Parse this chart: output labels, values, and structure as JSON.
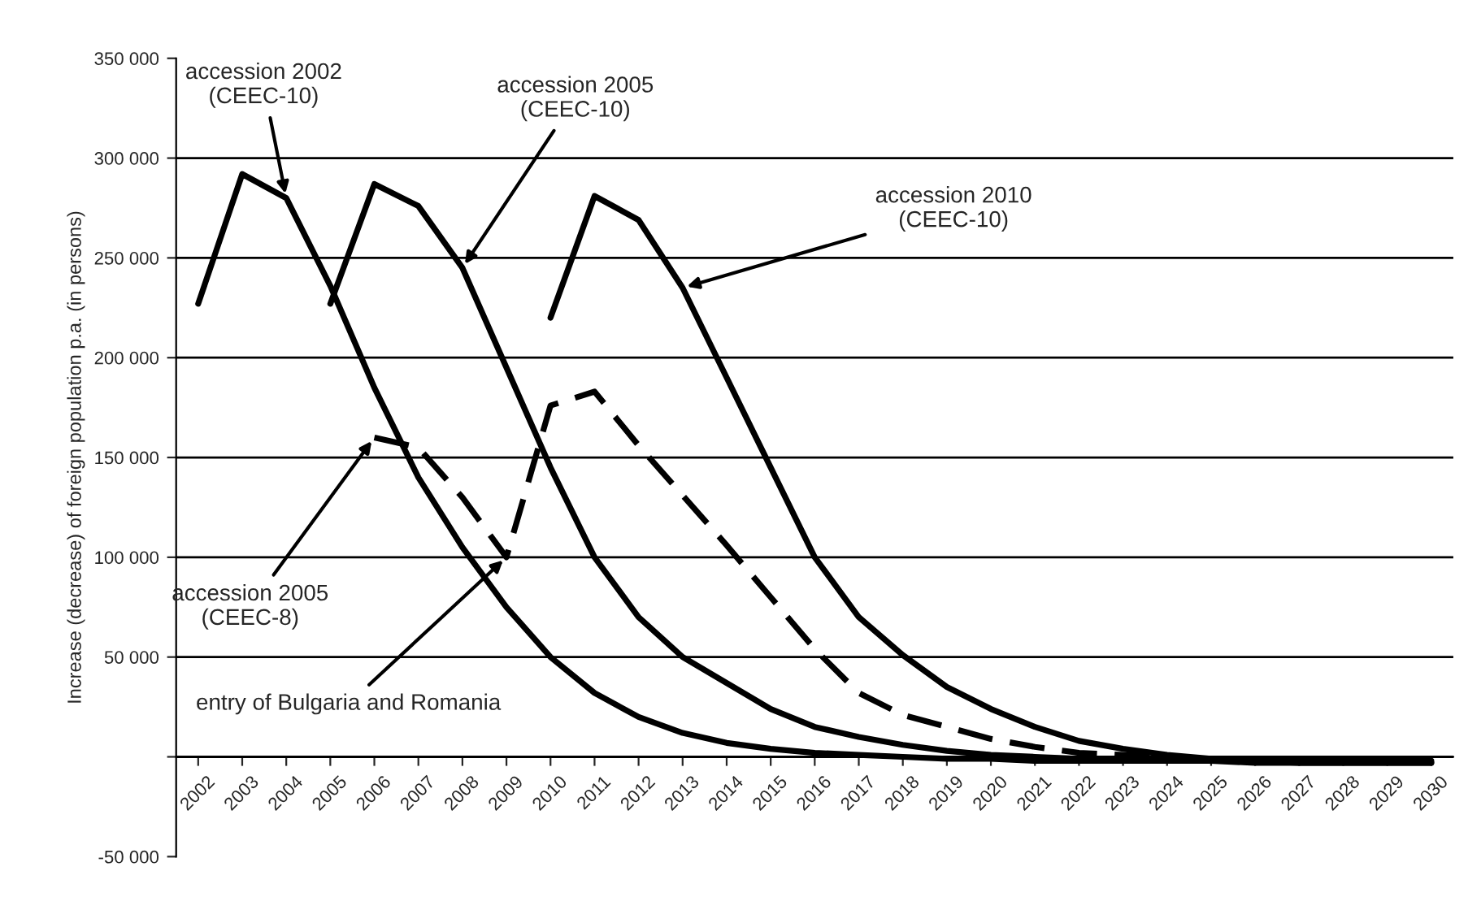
{
  "chart_data": {
    "type": "line",
    "ylabel": "Increase (decrease) of foreign population p.a. (in persons)",
    "categories": [
      "2002",
      "2003",
      "2004",
      "2005",
      "2006",
      "2007",
      "2008",
      "2009",
      "2010",
      "2011",
      "2012",
      "2013",
      "2014",
      "2015",
      "2016",
      "2017",
      "2018",
      "2019",
      "2020",
      "2021",
      "2022",
      "2023",
      "2024",
      "2025",
      "2026",
      "2027",
      "2028",
      "2029",
      "2030"
    ],
    "series": [
      {
        "color": "#000000",
        "line_style": "solid",
        "values": [
          227000,
          292000,
          280000,
          236000,
          185000,
          140000,
          105000,
          75000,
          50000,
          32000,
          20000,
          12000,
          7000,
          4000,
          2000,
          1000,
          0,
          -1000,
          -1000,
          -2000,
          -2000,
          -2000,
          -2000,
          -2000,
          -2000,
          -2000,
          -2000,
          -2000,
          -2000
        ]
      },
      {
        "color": "#000000",
        "line_style": "solid",
        "values": [
          null,
          null,
          null,
          227000,
          287000,
          276000,
          245000,
          195000,
          145000,
          100000,
          70000,
          50000,
          37000,
          24000,
          15000,
          10000,
          6000,
          3000,
          1000,
          0,
          -1000,
          -2000,
          -2000,
          -2000,
          -3000,
          -3000,
          -3000,
          -3000,
          -3000
        ]
      },
      {
        "color": "#000000",
        "line_style": "solid",
        "values": [
          null,
          null,
          null,
          null,
          null,
          null,
          null,
          null,
          220000,
          281000,
          269000,
          235000,
          190000,
          145000,
          100000,
          70000,
          51000,
          35000,
          24000,
          15000,
          8000,
          4000,
          1000,
          -1000,
          -2000,
          -3000,
          -3000,
          -3000,
          -3000
        ]
      },
      {
        "color": "#000000",
        "line_style": "dashed",
        "values": [
          null,
          null,
          null,
          null,
          160000,
          155000,
          130000,
          100000,
          176000,
          183000,
          156000,
          131000,
          106000,
          80000,
          54000,
          32000,
          21000,
          15000,
          9000,
          5000,
          2000,
          1000,
          0,
          -2000,
          -2000,
          -2000,
          -2000,
          -2000,
          -2000
        ]
      }
    ],
    "ylim": [
      -50000,
      350000
    ],
    "yticks": [
      {
        "value": -50000,
        "label": "-50 000"
      },
      {
        "value": 0,
        "label": null
      },
      {
        "value": 50000,
        "label": "50 000"
      },
      {
        "value": 100000,
        "label": "100 000"
      },
      {
        "value": 150000,
        "label": "150 000"
      },
      {
        "value": 200000,
        "label": "200 000"
      },
      {
        "value": 250000,
        "label": "250 000"
      },
      {
        "value": 300000,
        "label": "300 000"
      },
      {
        "value": 350000,
        "label": "350 000"
      }
    ],
    "grid": "y",
    "marker": "none",
    "annotations": [
      {
        "text": "accession 2002\n(CEEC-10)",
        "x": "2004",
        "y": 280000
      },
      {
        "text": "accession 2005\n(CEEC-10)",
        "x": "2008",
        "y": 245000
      },
      {
        "text": "accession 2010\n(CEEC-10)",
        "x": "2013",
        "y": 235000
      },
      {
        "text": "accession 2005\n(CEEC-8)",
        "x": "2006",
        "y": 160000
      },
      {
        "text": "entry of Bulgaria and Romania",
        "x": "2009",
        "y": 100000
      }
    ]
  }
}
